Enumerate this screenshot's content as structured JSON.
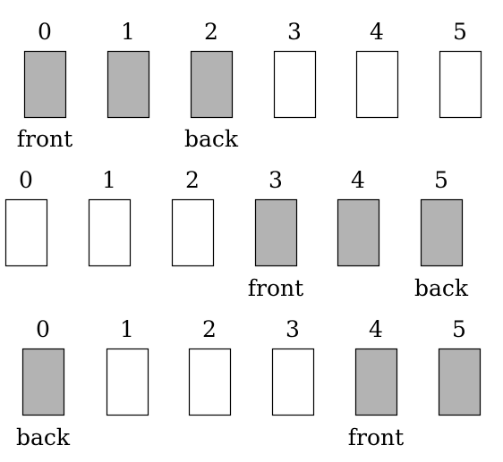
{
  "colors": {
    "filled": "#b3b3b3",
    "empty": "#ffffff",
    "stroke": "#000000"
  },
  "rows": [
    {
      "cells": [
        {
          "index": "0",
          "filled": true
        },
        {
          "index": "1",
          "filled": true
        },
        {
          "index": "2",
          "filled": true
        },
        {
          "index": "3",
          "filled": false
        },
        {
          "index": "4",
          "filled": false
        },
        {
          "index": "5",
          "filled": false
        }
      ],
      "labels": [
        {
          "text": "front",
          "cell": 0
        },
        {
          "text": "back",
          "cell": 2
        }
      ]
    },
    {
      "cells": [
        {
          "index": "0",
          "filled": false
        },
        {
          "index": "1",
          "filled": false
        },
        {
          "index": "2",
          "filled": false
        },
        {
          "index": "3",
          "filled": true
        },
        {
          "index": "4",
          "filled": true
        },
        {
          "index": "5",
          "filled": true
        }
      ],
      "labels": [
        {
          "text": "front",
          "cell": 3
        },
        {
          "text": "back",
          "cell": 5
        }
      ]
    },
    {
      "cells": [
        {
          "index": "0",
          "filled": true
        },
        {
          "index": "1",
          "filled": false
        },
        {
          "index": "2",
          "filled": false
        },
        {
          "index": "3",
          "filled": false
        },
        {
          "index": "4",
          "filled": true
        },
        {
          "index": "5",
          "filled": true
        }
      ],
      "labels": [
        {
          "text": "back",
          "cell": 0
        },
        {
          "text": "front",
          "cell": 4
        }
      ]
    }
  ]
}
